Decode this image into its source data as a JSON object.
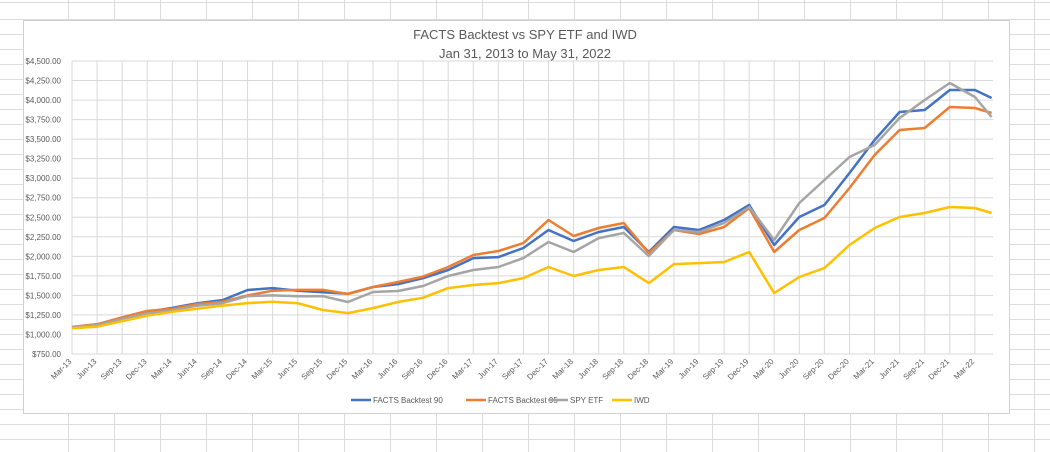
{
  "chart_data": {
    "type": "line",
    "title": "FACTS Backtest vs SPY ETF and IWD",
    "subtitle": "Jan 31, 2013 to May 31, 2022",
    "xlabel": "",
    "ylabel": "",
    "ylim": [
      750,
      4500
    ],
    "y_ticks": [
      "$750.00",
      "$1,000.00",
      "$1,250.00",
      "$1,500.00",
      "$1,750.00",
      "$2,000.00",
      "$2,250.00",
      "$2,500.00",
      "$2,750.00",
      "$3,000.00",
      "$3,250.00",
      "$3,500.00",
      "$3,750.00",
      "$4,000.00",
      "$4,250.00",
      "$4,500.00"
    ],
    "y_tick_values": [
      750,
      1000,
      1250,
      1500,
      1750,
      2000,
      2250,
      2500,
      2750,
      3000,
      3250,
      3500,
      3750,
      4000,
      4250,
      4500
    ],
    "x_tick_labels": [
      "Mar-13",
      "Jun-13",
      "Sep-13",
      "Dec-13",
      "Mar-14",
      "Jun-14",
      "Sep-14",
      "Dec-14",
      "Mar-15",
      "Jun-15",
      "Sep-15",
      "Dec-15",
      "Mar-16",
      "Jun-16",
      "Sep-16",
      "Dec-16",
      "Mar-17",
      "Jun-17",
      "Sep-17",
      "Dec-17",
      "Mar-18",
      "Jun-18",
      "Sep-18",
      "Dec-18",
      "Mar-19",
      "Jun-19",
      "Sep-19",
      "Dec-19",
      "Mar-20",
      "Jun-20",
      "Sep-20",
      "Dec-20",
      "Mar-21",
      "Jun-21",
      "Sep-21",
      "Dec-21",
      "Mar-22"
    ],
    "x_months_from_mar13": [
      0,
      3,
      6,
      9,
      12,
      15,
      18,
      21,
      24,
      27,
      30,
      33,
      36,
      39,
      42,
      45,
      48,
      51,
      54,
      57,
      60,
      63,
      66,
      69,
      72,
      75,
      78,
      81,
      84,
      87,
      90,
      93,
      96,
      99,
      102,
      105,
      108,
      110
    ],
    "grid": true,
    "legend_position": "bottom",
    "series": [
      {
        "name": "FACTS Backtest 90",
        "color": "#4472C4",
        "values": [
          1095,
          1130,
          1210,
          1290,
          1340,
          1400,
          1440,
          1569,
          1594,
          1560,
          1540,
          1520,
          1607,
          1645,
          1720,
          1825,
          1978,
          1990,
          2107,
          2337,
          2196,
          2311,
          2375,
          2055,
          2375,
          2337,
          2465,
          2657,
          2145,
          2503,
          2657,
          3066,
          3489,
          3847,
          3873,
          4129,
          4129,
          4026
        ]
      },
      {
        "name": "FACTS Backtest 95",
        "color": "#ED7D31",
        "values": [
          1095,
          1130,
          1220,
          1300,
          1330,
          1390,
          1420,
          1500,
          1560,
          1570,
          1570,
          1518,
          1607,
          1671,
          1740,
          1863,
          2017,
          2068,
          2170,
          2465,
          2260,
          2362,
          2426,
          2042,
          2337,
          2286,
          2375,
          2618,
          2055,
          2337,
          2490,
          2874,
          3297,
          3617,
          3642,
          3911,
          3898,
          3834
        ]
      },
      {
        "name": "SPY ETF",
        "color": "#A5A5A5",
        "values": [
          1095,
          1120,
          1200,
          1270,
          1310,
          1370,
          1400,
          1491,
          1500,
          1490,
          1490,
          1415,
          1543,
          1556,
          1620,
          1748,
          1825,
          1863,
          1978,
          2183,
          2055,
          2234,
          2298,
          2004,
          2337,
          2311,
          2426,
          2631,
          2209,
          2682,
          2977,
          3271,
          3425,
          3770,
          4001,
          4218,
          4039,
          3783
        ]
      },
      {
        "name": "IWD",
        "color": "#FFC000",
        "values": [
          1080,
          1100,
          1170,
          1240,
          1290,
          1330,
          1370,
          1402,
          1420,
          1400,
          1313,
          1274,
          1338,
          1415,
          1470,
          1594,
          1633,
          1658,
          1722,
          1863,
          1748,
          1825,
          1863,
          1658,
          1901,
          1914,
          1927,
          2055,
          1530,
          1735,
          1850,
          2145,
          2362,
          2503,
          2554,
          2631,
          2618,
          2554
        ]
      }
    ]
  }
}
